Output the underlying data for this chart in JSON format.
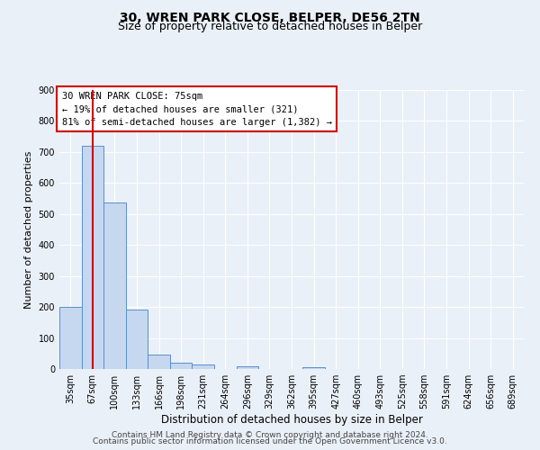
{
  "title": "30, WREN PARK CLOSE, BELPER, DE56 2TN",
  "subtitle": "Size of property relative to detached houses in Belper",
  "xlabel": "Distribution of detached houses by size in Belper",
  "ylabel": "Number of detached properties",
  "bar_labels": [
    "35sqm",
    "67sqm",
    "100sqm",
    "133sqm",
    "166sqm",
    "198sqm",
    "231sqm",
    "264sqm",
    "296sqm",
    "329sqm",
    "362sqm",
    "395sqm",
    "427sqm",
    "460sqm",
    "493sqm",
    "525sqm",
    "558sqm",
    "591sqm",
    "624sqm",
    "656sqm",
    "689sqm"
  ],
  "bar_values": [
    200,
    720,
    537,
    192,
    46,
    20,
    14,
    0,
    10,
    0,
    0,
    7,
    0,
    0,
    0,
    0,
    0,
    0,
    0,
    0,
    0
  ],
  "bar_color": "#c5d8f0",
  "bar_edge_color": "#5b8fc9",
  "property_line_bin": 1,
  "vline_color": "#cc0000",
  "annotation_line1": "30 WREN PARK CLOSE: 75sqm",
  "annotation_line2": "← 19% of detached houses are smaller (321)",
  "annotation_line3": "81% of semi-detached houses are larger (1,382) →",
  "annotation_box_color": "#ffffff",
  "annotation_box_edge": "#cc0000",
  "ylim": [
    0,
    900
  ],
  "yticks": [
    0,
    100,
    200,
    300,
    400,
    500,
    600,
    700,
    800,
    900
  ],
  "bg_color": "#eaf0f8",
  "plot_bg_color": "#eaf0f8",
  "grid_color": "#ffffff",
  "footer1": "Contains HM Land Registry data © Crown copyright and database right 2024.",
  "footer2": "Contains public sector information licensed under the Open Government Licence v3.0.",
  "title_fontsize": 10,
  "subtitle_fontsize": 9,
  "xlabel_fontsize": 8.5,
  "ylabel_fontsize": 8,
  "tick_fontsize": 7,
  "annotation_fontsize": 7.5,
  "footer_fontsize": 6.5
}
